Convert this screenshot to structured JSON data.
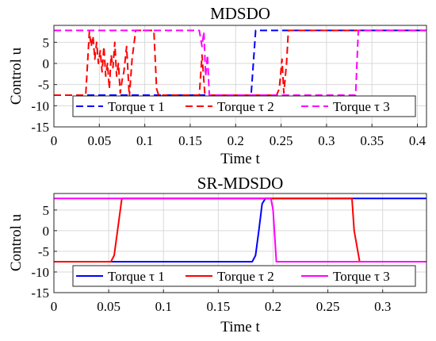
{
  "chart_data": [
    {
      "type": "line",
      "title": "MDSDO",
      "xlabel": "Time t",
      "ylabel": "Control u",
      "xlim": [
        0,
        0.41
      ],
      "ylim": [
        -15,
        9
      ],
      "xticks": [
        0,
        0.05,
        0.1,
        0.15,
        0.2,
        0.25,
        0.3,
        0.35,
        0.4
      ],
      "xtick_labels": [
        "0",
        "0.05",
        "0.1",
        "0.15",
        "0.2",
        "0.25",
        "0.3",
        "0.35",
        "0.4"
      ],
      "yticks": [
        5,
        0,
        -5,
        -10,
        -15
      ],
      "ytick_labels": [
        "5",
        "0",
        "-5",
        "-10",
        "-15"
      ],
      "grid": true,
      "legend": "lower-center horizontal",
      "series": [
        {
          "name": "Torque τ 1",
          "color": "#0000ff",
          "style": "dashed",
          "x": [
            0,
            0.217,
            0.222,
            0.41
          ],
          "y": [
            -7.5,
            -7.5,
            7.8,
            7.8
          ]
        },
        {
          "name": "Torque τ 2",
          "color": "#ff0000",
          "style": "dashed",
          "x": [
            0,
            0.035,
            0.039,
            0.041,
            0.043,
            0.045,
            0.047,
            0.049,
            0.051,
            0.053,
            0.055,
            0.057,
            0.059,
            0.061,
            0.063,
            0.065,
            0.067,
            0.069,
            0.071,
            0.073,
            0.075,
            0.077,
            0.08,
            0.083,
            0.086,
            0.09,
            0.11,
            0.113,
            0.116,
            0.12,
            0.16,
            0.163,
            0.166,
            0.17,
            0.245,
            0.248,
            0.251,
            0.253,
            0.256,
            0.258,
            0.41
          ],
          "y": [
            -7.5,
            -7.5,
            7.5,
            4,
            6.5,
            1,
            5,
            0,
            3,
            -2,
            4,
            -3,
            0,
            -6,
            2,
            -1,
            5,
            -3,
            0,
            -7,
            -4,
            -2,
            4,
            -8,
            1,
            7.8,
            7.8,
            -6,
            -8,
            -7.5,
            -7.5,
            2,
            -7,
            -7.5,
            -7.5,
            -6,
            1,
            -7,
            0,
            7.8,
            7.8
          ]
        },
        {
          "name": "Torque τ 3",
          "color": "#ff00ff",
          "style": "dashed",
          "x": [
            0,
            0.16,
            0.163,
            0.165,
            0.167,
            0.169,
            0.171,
            0.332,
            0.335,
            0.41
          ],
          "y": [
            7.8,
            7.8,
            4,
            7.5,
            -3,
            2,
            -7.5,
            -7.5,
            7.8,
            7.8
          ]
        }
      ]
    },
    {
      "type": "line",
      "title": "SR-MDSDO",
      "xlabel": "Time t",
      "ylabel": "Control u",
      "xlim": [
        0,
        0.34
      ],
      "ylim": [
        -15,
        9
      ],
      "xticks": [
        0,
        0.05,
        0.1,
        0.15,
        0.2,
        0.25,
        0.3
      ],
      "xtick_labels": [
        "0",
        "0.05",
        "0.1",
        "0.15",
        "0.2",
        "0.25",
        "0.3"
      ],
      "yticks": [
        5,
        0,
        -5,
        -10,
        -15
      ],
      "ytick_labels": [
        "5",
        "0",
        "-5",
        "-10",
        "-15"
      ],
      "grid": true,
      "legend": "lower-center horizontal",
      "series": [
        {
          "name": "Torque τ 1",
          "color": "#0000ff",
          "style": "solid",
          "x": [
            0,
            0.181,
            0.184,
            0.187,
            0.19,
            0.193,
            0.196,
            0.34
          ],
          "y": [
            -7.5,
            -7.5,
            -6,
            0,
            6.5,
            7.8,
            7.8,
            7.8
          ]
        },
        {
          "name": "Torque τ 2",
          "color": "#ff0000",
          "style": "solid",
          "x": [
            0,
            0.052,
            0.055,
            0.062,
            0.272,
            0.274,
            0.279,
            0.34
          ],
          "y": [
            -7.5,
            -7.5,
            -6,
            7.8,
            7.8,
            0,
            -7.5,
            -7.5
          ]
        },
        {
          "name": "Torque τ 3",
          "color": "#ff00ff",
          "style": "solid",
          "x": [
            0,
            0.195,
            0.198,
            0.2,
            0.203,
            0.34
          ],
          "y": [
            7.8,
            7.8,
            7.8,
            5,
            -7.5,
            -7.5
          ]
        }
      ]
    }
  ]
}
